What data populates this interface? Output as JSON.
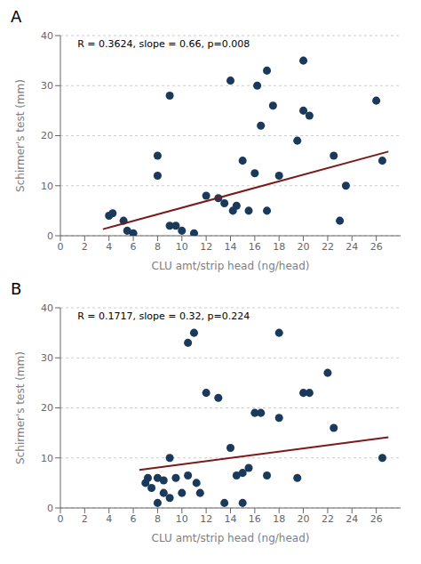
{
  "chart_data": [
    {
      "type": "scatter",
      "title": "A",
      "annotations": [
        "R = 0.3624, slope = 0.66, p=0.008"
      ],
      "xlabel": "CLU amt/strip head (ng/head)",
      "ylabel": "Schirmer's test (mm)",
      "xlim": [
        0,
        28
      ],
      "ylim": [
        0,
        40
      ],
      "xticks": [
        0,
        2,
        4,
        6,
        8,
        10,
        12,
        14,
        16,
        18,
        20,
        22,
        24,
        26
      ],
      "yticks": [
        0,
        10,
        20,
        30,
        40
      ],
      "grid": "y",
      "series": [
        {
          "type": "scatter",
          "color": "#1a3a5c",
          "x": [
            4.0,
            4.3,
            5.2,
            5.5,
            6.0,
            8.0,
            8.0,
            9.0,
            9.0,
            9.5,
            10.0,
            11.0,
            12.0,
            13.0,
            13.5,
            14.0,
            14.2,
            14.5,
            15.0,
            15.5,
            16.0,
            16.2,
            16.5,
            17.0,
            17.0,
            17.5,
            18.0,
            19.5,
            20.0,
            20.0,
            20.5,
            22.5,
            23.0,
            23.5,
            26.0,
            26.5
          ],
          "values": [
            4.0,
            4.5,
            3.0,
            1.0,
            0.5,
            16.0,
            12.0,
            28.0,
            2.0,
            2.0,
            1.0,
            0.5,
            8.0,
            7.5,
            6.5,
            31.0,
            5.0,
            6.0,
            15.0,
            5.0,
            12.5,
            30.0,
            22.0,
            33.0,
            5.0,
            26.0,
            12.0,
            19.0,
            35.0,
            25.0,
            24.0,
            16.0,
            3.0,
            10.0,
            27.0,
            15.0
          ]
        },
        {
          "type": "line",
          "color": "#7b1a1a",
          "x": [
            3.5,
            27.0
          ],
          "values": [
            1.31,
            16.82
          ]
        }
      ]
    },
    {
      "type": "scatter",
      "title": "B",
      "annotations": [
        "R = 0.1717, slope = 0.32, p=0.224"
      ],
      "xlabel": "CLU amt/strip head (ng/head)",
      "ylabel": "Schirmer's test (mm)",
      "xlim": [
        0,
        28
      ],
      "ylim": [
        0,
        40
      ],
      "xticks": [
        0,
        2,
        4,
        6,
        8,
        10,
        12,
        14,
        16,
        18,
        20,
        22,
        24,
        26
      ],
      "yticks": [
        0,
        10,
        20,
        30,
        40
      ],
      "grid": "y",
      "series": [
        {
          "type": "scatter",
          "color": "#1a3a5c",
          "x": [
            7.0,
            7.2,
            7.5,
            8.0,
            8.0,
            8.5,
            8.5,
            9.0,
            9.0,
            9.5,
            10.0,
            10.5,
            10.5,
            11.0,
            11.2,
            11.5,
            12.0,
            13.0,
            13.5,
            14.0,
            14.5,
            15.0,
            15.0,
            15.5,
            16.0,
            16.5,
            17.0,
            18.0,
            18.0,
            19.5,
            20.0,
            20.5,
            22.0,
            22.5,
            26.5
          ],
          "values": [
            5.0,
            6.0,
            4.0,
            6.0,
            1.0,
            5.5,
            3.0,
            10.0,
            2.0,
            6.0,
            3.0,
            33.0,
            6.5,
            35.0,
            5.0,
            3.0,
            23.0,
            22.0,
            1.0,
            12.0,
            6.5,
            7.0,
            1.0,
            8.0,
            19.0,
            19.0,
            6.5,
            18.0,
            35.0,
            6.0,
            23.0,
            23.0,
            27.0,
            16.0,
            10.0
          ]
        },
        {
          "type": "line",
          "color": "#7b1a1a",
          "x": [
            6.5,
            27.0
          ],
          "values": [
            7.58,
            14.14
          ]
        }
      ]
    }
  ]
}
